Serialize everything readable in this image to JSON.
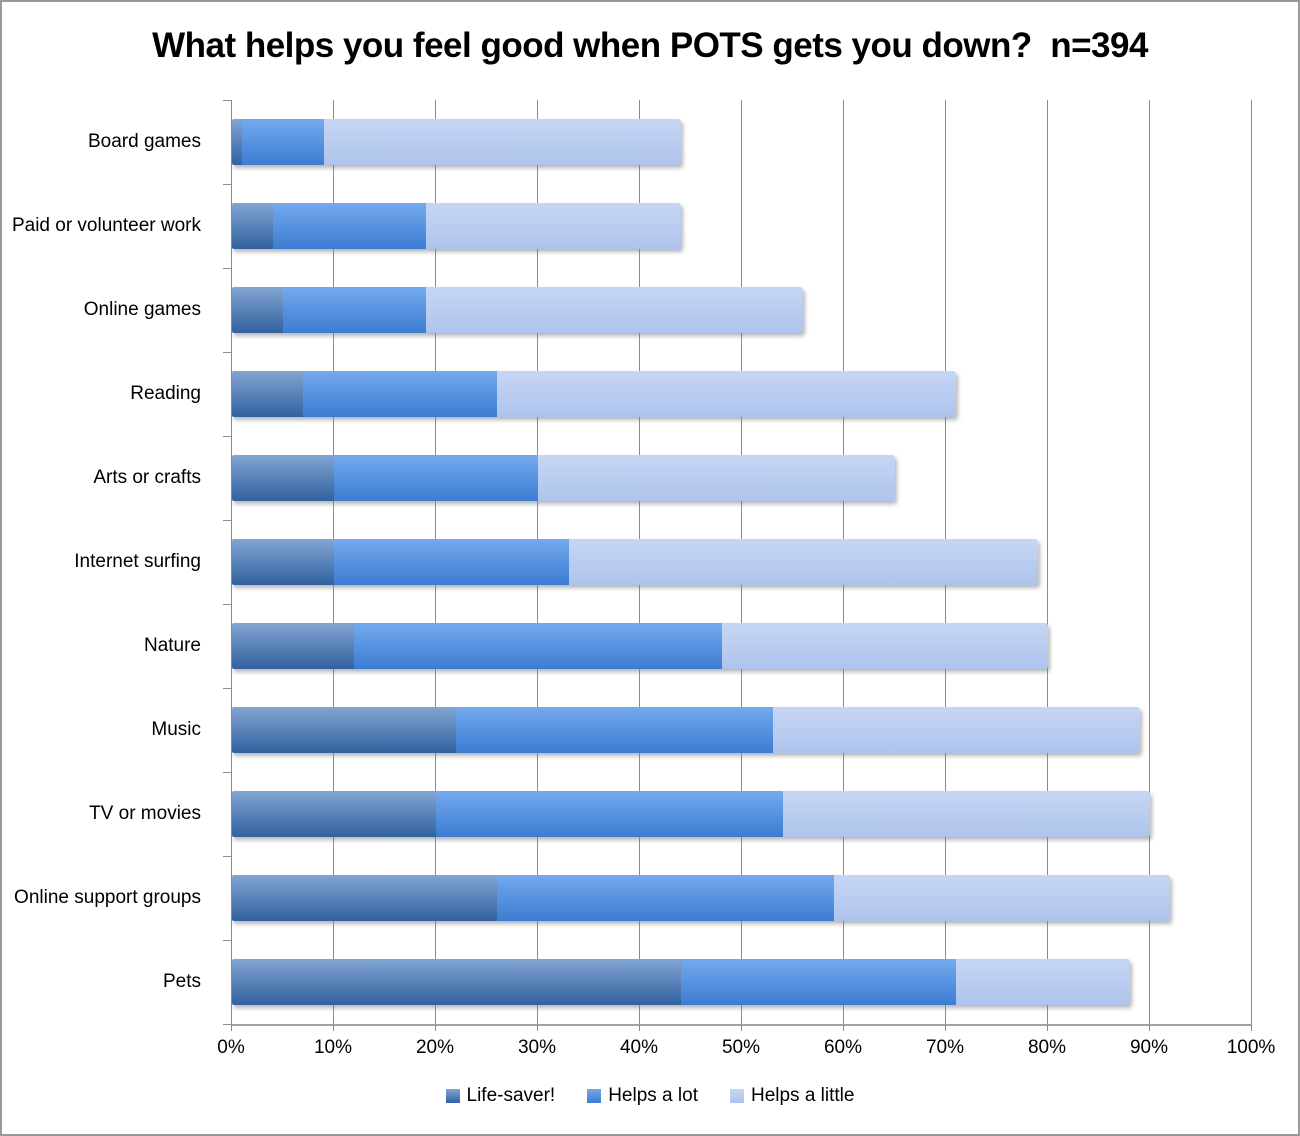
{
  "window": {
    "border_color": "#999999",
    "background": "#ffffff"
  },
  "chart_data": {
    "type": "bar",
    "orientation": "horizontal",
    "stacked": true,
    "title": "What helps you feel good when POTS gets you down?  n=394",
    "sample_size": "n=394",
    "categories": [
      "Board games",
      "Paid or volunteer work",
      "Online games",
      "Reading",
      "Arts or crafts",
      "Internet surfing",
      "Nature",
      "Music",
      "TV or movies",
      "Online support groups",
      "Pets"
    ],
    "series": [
      {
        "name": "Life-saver!",
        "values": [
          1,
          4,
          5,
          7,
          10,
          10,
          12,
          22,
          20,
          26,
          44
        ],
        "color_top": "#82A5D2",
        "color_bottom": "#31619F"
      },
      {
        "name": "Helps a lot",
        "values": [
          8,
          15,
          14,
          19,
          20,
          23,
          36,
          31,
          34,
          33,
          27
        ],
        "color_top": "#74A9ED",
        "color_bottom": "#3C7CD2"
      },
      {
        "name": "Helps a little",
        "values": [
          35,
          25,
          37,
          45,
          35,
          46,
          32,
          36,
          36,
          33,
          17
        ],
        "color_top": "#C6D5F4",
        "color_bottom": "#AEC4ED"
      }
    ],
    "cumulative_totals": [
      44,
      44,
      56,
      71,
      65,
      79,
      80,
      89,
      90,
      92,
      88
    ],
    "xlabel": "",
    "ylabel": "",
    "xlim": [
      0,
      100
    ],
    "xticks": [
      "0%",
      "10%",
      "20%",
      "30%",
      "40%",
      "50%",
      "60%",
      "70%",
      "80%",
      "90%",
      "100%"
    ],
    "grid": true,
    "gridline_color": "#8c8c8c",
    "legend_position": "bottom"
  }
}
